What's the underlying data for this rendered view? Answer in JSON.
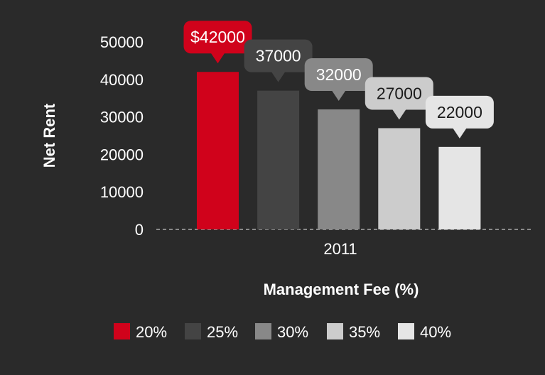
{
  "chart_data": {
    "type": "bar",
    "categories": [
      "2011"
    ],
    "series": [
      {
        "name": "20%",
        "values": [
          42000
        ],
        "color": "#d0021b",
        "label": "$42000",
        "label_color": "#ffffff"
      },
      {
        "name": "25%",
        "values": [
          37000
        ],
        "color": "#444444",
        "label": "37000",
        "label_color": "#ffffff"
      },
      {
        "name": "30%",
        "values": [
          32000
        ],
        "color": "#888888",
        "label": "32000",
        "label_color": "#ffffff"
      },
      {
        "name": "35%",
        "values": [
          27000
        ],
        "color": "#cccccc",
        "label": "27000",
        "label_color": "#1a1a1a"
      },
      {
        "name": "40%",
        "values": [
          22000
        ],
        "color": "#e5e5e5",
        "label": "22000",
        "label_color": "#1a1a1a"
      }
    ],
    "xlabel": "Management Fee (%)",
    "ylabel": "Net Rent",
    "ylim": [
      0,
      50000
    ],
    "yticks": [
      0,
      10000,
      20000,
      30000,
      40000,
      50000
    ],
    "grid": false,
    "legend_position": "bottom",
    "colors": {
      "background": "#2a2a2a",
      "text": "#ffffff",
      "baseline": "#aaaaaa"
    }
  }
}
